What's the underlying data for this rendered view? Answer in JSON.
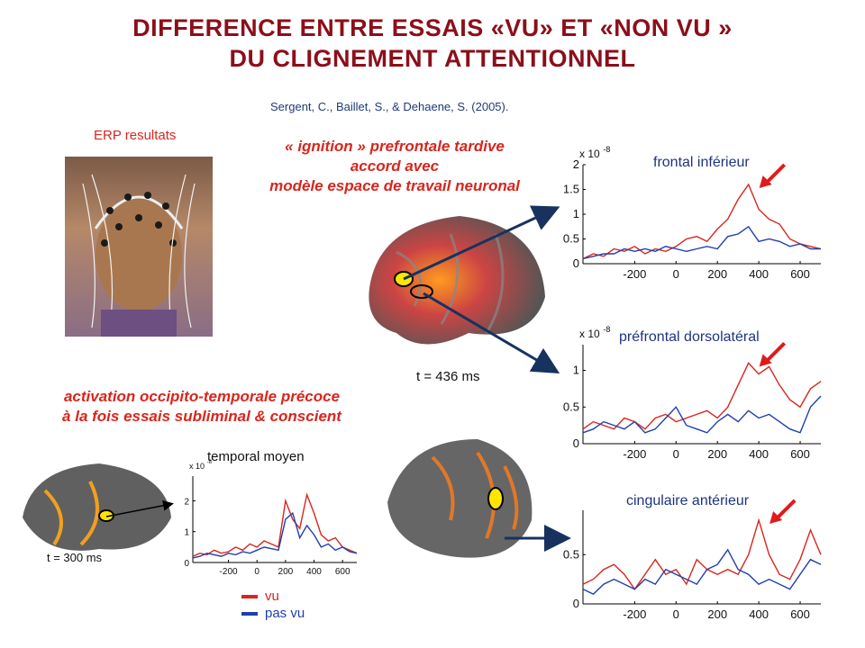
{
  "title": {
    "line1": "DIFFERENCE ENTRE ESSAIS «VU»  ET «NON VU »",
    "line2": "DU CLIGNEMENT ATTENTIONNEL"
  },
  "citation": "Sergent, C., Baillet, S., & Dehaene, S. (2005).",
  "erp_label": "ERP resultats",
  "ignition_text": {
    "line1": "« ignition » prefrontale tardive",
    "line2": "accord avec",
    "line3": "modèle espace de travail neuronal"
  },
  "activation_text": {
    "line1": "activation occipito-temporale précoce",
    "line2": "à la fois essais subliminal & conscient"
  },
  "time_labels": {
    "main": "t = 436 ms",
    "small": "t = 300 ms"
  },
  "legend": {
    "seen": "vu",
    "unseen": "pas vu"
  },
  "colors": {
    "seen": "#d7261e",
    "unseen": "#1f3fb0",
    "title": "#8b0f1a",
    "arrow": "#17325f"
  },
  "chart_data": [
    {
      "type": "line",
      "title": "frontal inférieur",
      "scale_label": "x 10",
      "scale_exp": "-8",
      "x_ticks": [
        -200,
        0,
        200,
        400,
        600
      ],
      "y_ticks": [
        0,
        0.5,
        1,
        1.5,
        2
      ],
      "xlim": [
        -450,
        700
      ],
      "ylim": [
        0,
        2
      ],
      "series": [
        {
          "name": "vu",
          "x": [
            -450,
            -400,
            -350,
            -300,
            -250,
            -200,
            -150,
            -100,
            -50,
            0,
            50,
            100,
            150,
            200,
            250,
            300,
            350,
            400,
            450,
            500,
            550,
            600,
            650,
            700
          ],
          "y": [
            0.1,
            0.2,
            0.15,
            0.3,
            0.25,
            0.35,
            0.2,
            0.3,
            0.25,
            0.35,
            0.5,
            0.55,
            0.45,
            0.7,
            0.9,
            1.3,
            1.6,
            1.1,
            0.9,
            0.8,
            0.5,
            0.4,
            0.35,
            0.3
          ]
        },
        {
          "name": "pas vu",
          "x": [
            -450,
            -400,
            -350,
            -300,
            -250,
            -200,
            -150,
            -100,
            -50,
            0,
            50,
            100,
            150,
            200,
            250,
            300,
            350,
            400,
            450,
            500,
            550,
            600,
            650,
            700
          ],
          "y": [
            0.1,
            0.15,
            0.2,
            0.2,
            0.3,
            0.25,
            0.3,
            0.25,
            0.35,
            0.3,
            0.25,
            0.3,
            0.35,
            0.3,
            0.55,
            0.6,
            0.75,
            0.45,
            0.5,
            0.45,
            0.35,
            0.4,
            0.3,
            0.3
          ]
        }
      ]
    },
    {
      "type": "line",
      "title": "préfrontal dorsolatéral",
      "scale_label": "x 10",
      "scale_exp": "-8",
      "x_ticks": [
        -200,
        0,
        200,
        400,
        600
      ],
      "y_ticks": [
        0,
        0.5,
        1
      ],
      "xlim": [
        -450,
        700
      ],
      "ylim": [
        0,
        1.35
      ],
      "series": [
        {
          "name": "vu",
          "x": [
            -450,
            -400,
            -350,
            -300,
            -250,
            -200,
            -150,
            -100,
            -50,
            0,
            50,
            100,
            150,
            200,
            250,
            300,
            350,
            400,
            450,
            500,
            550,
            600,
            650,
            700
          ],
          "y": [
            0.2,
            0.3,
            0.25,
            0.2,
            0.35,
            0.3,
            0.2,
            0.35,
            0.4,
            0.3,
            0.35,
            0.4,
            0.45,
            0.35,
            0.5,
            0.8,
            1.1,
            0.95,
            1.05,
            0.8,
            0.6,
            0.5,
            0.75,
            0.85
          ]
        },
        {
          "name": "pas vu",
          "x": [
            -450,
            -400,
            -350,
            -300,
            -250,
            -200,
            -150,
            -100,
            -50,
            0,
            50,
            100,
            150,
            200,
            250,
            300,
            350,
            400,
            450,
            500,
            550,
            600,
            650,
            700
          ],
          "y": [
            0.15,
            0.2,
            0.3,
            0.25,
            0.2,
            0.3,
            0.15,
            0.2,
            0.35,
            0.5,
            0.25,
            0.2,
            0.15,
            0.3,
            0.4,
            0.3,
            0.45,
            0.35,
            0.4,
            0.3,
            0.2,
            0.15,
            0.5,
            0.65
          ]
        }
      ]
    },
    {
      "type": "line",
      "title": "cingulaire antérieur",
      "x_ticks": [
        -200,
        0,
        200,
        400,
        600
      ],
      "y_ticks": [
        0,
        0.5
      ],
      "xlim": [
        -450,
        700
      ],
      "ylim": [
        0,
        0.95
      ],
      "series": [
        {
          "name": "vu",
          "x": [
            -450,
            -400,
            -350,
            -300,
            -250,
            -200,
            -150,
            -100,
            -50,
            0,
            50,
            100,
            150,
            200,
            250,
            300,
            350,
            400,
            450,
            500,
            550,
            600,
            650,
            700
          ],
          "y": [
            0.2,
            0.25,
            0.35,
            0.4,
            0.3,
            0.15,
            0.3,
            0.45,
            0.3,
            0.35,
            0.2,
            0.45,
            0.35,
            0.3,
            0.35,
            0.3,
            0.5,
            0.85,
            0.5,
            0.3,
            0.25,
            0.45,
            0.75,
            0.5
          ]
        },
        {
          "name": "pas vu",
          "x": [
            -450,
            -400,
            -350,
            -300,
            -250,
            -200,
            -150,
            -100,
            -50,
            0,
            50,
            100,
            150,
            200,
            250,
            300,
            350,
            400,
            450,
            500,
            550,
            600,
            650,
            700
          ],
          "y": [
            0.15,
            0.1,
            0.2,
            0.25,
            0.2,
            0.15,
            0.25,
            0.2,
            0.35,
            0.3,
            0.25,
            0.2,
            0.35,
            0.4,
            0.55,
            0.35,
            0.3,
            0.2,
            0.25,
            0.2,
            0.15,
            0.3,
            0.45,
            0.4
          ]
        }
      ]
    },
    {
      "type": "line",
      "title": "temporal moyen",
      "scale_label": "x 10",
      "scale_exp": "-8",
      "x_ticks": [
        -200,
        0,
        200,
        400,
        600
      ],
      "y_ticks": [
        0,
        1,
        2
      ],
      "xlim": [
        -450,
        700
      ],
      "ylim": [
        0,
        2.8
      ],
      "series": [
        {
          "name": "vu",
          "x": [
            -450,
            -400,
            -350,
            -300,
            -250,
            -200,
            -150,
            -100,
            -50,
            0,
            50,
            100,
            150,
            200,
            250,
            300,
            350,
            400,
            450,
            500,
            550,
            600,
            650,
            700
          ],
          "y": [
            0.2,
            0.3,
            0.25,
            0.4,
            0.3,
            0.35,
            0.5,
            0.4,
            0.6,
            0.5,
            0.7,
            0.6,
            0.5,
            2.0,
            1.4,
            1.1,
            2.2,
            1.6,
            0.9,
            0.7,
            0.8,
            0.5,
            0.4,
            0.3
          ]
        },
        {
          "name": "pas vu",
          "x": [
            -450,
            -400,
            -350,
            -300,
            -250,
            -200,
            -150,
            -100,
            -50,
            0,
            50,
            100,
            150,
            200,
            250,
            300,
            350,
            400,
            450,
            500,
            550,
            600,
            650,
            700
          ],
          "y": [
            0.15,
            0.2,
            0.3,
            0.25,
            0.2,
            0.3,
            0.25,
            0.35,
            0.3,
            0.4,
            0.5,
            0.45,
            0.4,
            1.4,
            1.6,
            0.8,
            1.2,
            0.9,
            0.5,
            0.6,
            0.4,
            0.5,
            0.35,
            0.3
          ]
        }
      ]
    }
  ]
}
